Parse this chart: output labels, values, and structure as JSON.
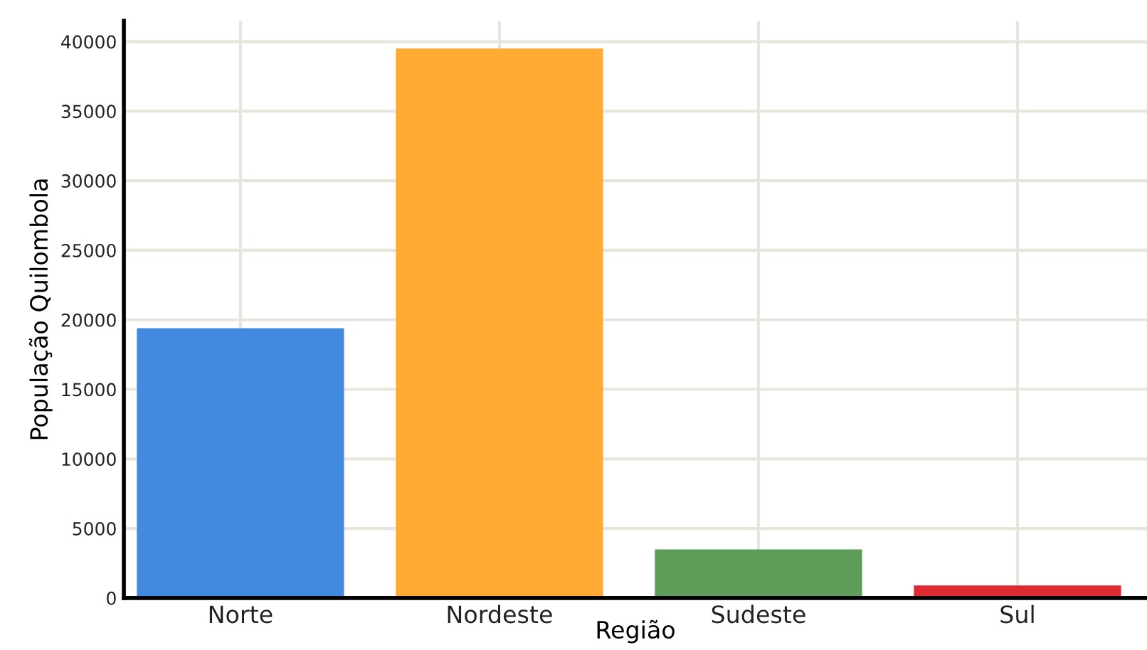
{
  "chart_data": {
    "type": "bar",
    "xlabel": "Região",
    "ylabel": "População Quilombola",
    "categories": [
      "Norte",
      "Nordeste",
      "Sudeste",
      "Sul"
    ],
    "values": [
      19400,
      39500,
      3500,
      900
    ],
    "colors": [
      "#428ae0",
      "#ffab33",
      "#5e9e5a",
      "#dd2a33"
    ],
    "ylim": [
      0,
      41500
    ],
    "yticks": [
      0,
      5000,
      10000,
      15000,
      20000,
      25000,
      30000,
      35000,
      40000
    ],
    "grid": true,
    "legend": false
  }
}
